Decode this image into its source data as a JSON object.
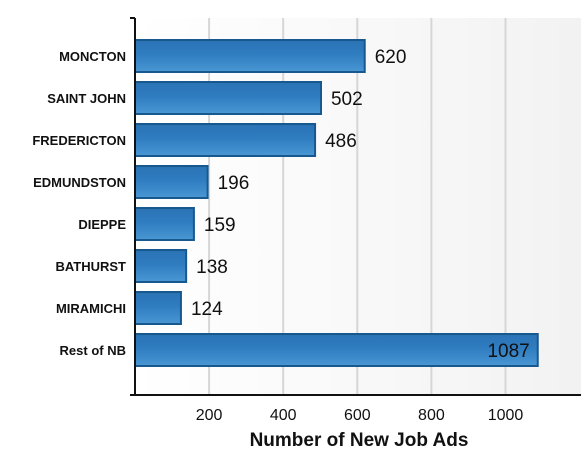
{
  "chart_data": {
    "type": "bar",
    "orientation": "horizontal",
    "categories": [
      "MONCTON",
      "SAINT JOHN",
      "FREDERICTON",
      "EDMUNDSTON",
      "DIEPPE",
      "BATHURST",
      "MIRAMICHI",
      "Rest of NB"
    ],
    "values": [
      620,
      502,
      486,
      196,
      159,
      138,
      124,
      1087
    ],
    "value_labels": [
      "620",
      "502",
      "486",
      "196",
      "159",
      "138",
      "124",
      "1087"
    ],
    "xlabel": "Number of New Job Ads",
    "ylabel": "",
    "title": "",
    "xlim": [
      0,
      1200
    ],
    "x_ticks": [
      "200",
      "400",
      "600",
      "800",
      "1000"
    ],
    "grid": "vertical",
    "bar_color": "#2f7cc0",
    "bar_edge_color": "#17588f"
  }
}
